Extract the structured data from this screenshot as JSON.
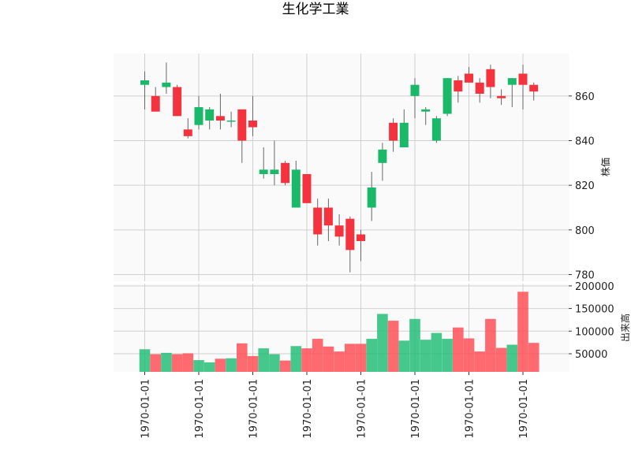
{
  "chart_data": {
    "title": "生化学工業",
    "type": "candlestick",
    "colors": {
      "up": "#1ab96a",
      "down": "#f5333f",
      "wick": "#666666",
      "vol_up": "#1fbd74",
      "vol_down": "#ff4a50",
      "panel_bg": "#fafafa",
      "grid": "#d0d0d0"
    },
    "price_panel": {
      "ylabel": "株価",
      "ylim": [
        777,
        879
      ],
      "yticks": [
        780,
        800,
        820,
        840,
        860
      ]
    },
    "volume_panel": {
      "ylabel": "出来高",
      "ylim": [
        10000,
        205000
      ],
      "yticks": [
        50000,
        100000,
        150000,
        200000
      ],
      "ytick_labels": [
        "50000",
        "100000",
        "150000",
        "200000"
      ]
    },
    "x_tick_labels": [
      "1970-01-01",
      "1970-01-01",
      "1970-01-01",
      "1970-01-01",
      "1970-01-01",
      "1970-01-01",
      "1970-01-01",
      "1970-01-01"
    ],
    "x_tick_indices": [
      0,
      5,
      10,
      15,
      20,
      25,
      30,
      35
    ],
    "candles": [
      {
        "o": 865,
        "h": 871,
        "l": 854,
        "c": 867,
        "v": 60000
      },
      {
        "o": 860,
        "h": 864,
        "l": 853,
        "c": 853,
        "v": 49000
      },
      {
        "o": 864,
        "h": 875,
        "l": 861,
        "c": 866,
        "v": 52000
      },
      {
        "o": 864,
        "h": 865,
        "l": 851,
        "c": 851,
        "v": 49000
      },
      {
        "o": 845,
        "h": 850,
        "l": 841,
        "c": 842,
        "v": 51000
      },
      {
        "o": 847,
        "h": 860,
        "l": 845,
        "c": 855,
        "v": 36000
      },
      {
        "o": 849,
        "h": 855,
        "l": 845,
        "c": 854,
        "v": 31000
      },
      {
        "o": 851,
        "h": 861,
        "l": 845,
        "c": 849,
        "v": 39000
      },
      {
        "o": 849,
        "h": 853,
        "l": 846,
        "c": 849,
        "v": 40000
      },
      {
        "o": 854,
        "h": 854,
        "l": 830,
        "c": 840,
        "v": 73000
      },
      {
        "o": 849,
        "h": 860,
        "l": 842,
        "c": 846,
        "v": 45000
      },
      {
        "o": 825,
        "h": 837,
        "l": 823,
        "c": 827,
        "v": 62000
      },
      {
        "o": 825,
        "h": 840,
        "l": 820,
        "c": 827,
        "v": 49000
      },
      {
        "o": 830,
        "h": 831,
        "l": 820,
        "c": 821,
        "v": 35000
      },
      {
        "o": 810,
        "h": 831,
        "l": 810,
        "c": 827,
        "v": 67000
      },
      {
        "o": 825,
        "h": 825,
        "l": 812,
        "c": 812,
        "v": 62000
      },
      {
        "o": 810,
        "h": 814,
        "l": 793,
        "c": 798,
        "v": 83000
      },
      {
        "o": 810,
        "h": 814,
        "l": 795,
        "c": 802,
        "v": 66000
      },
      {
        "o": 802,
        "h": 807,
        "l": 793,
        "c": 797,
        "v": 55000
      },
      {
        "o": 805,
        "h": 806,
        "l": 781,
        "c": 791,
        "v": 72000
      },
      {
        "o": 798,
        "h": 800,
        "l": 786,
        "c": 795,
        "v": 72000
      },
      {
        "o": 810,
        "h": 826,
        "l": 804,
        "c": 819,
        "v": 83000
      },
      {
        "o": 830,
        "h": 839,
        "l": 822,
        "c": 836,
        "v": 138000
      },
      {
        "o": 848,
        "h": 850,
        "l": 835,
        "c": 840,
        "v": 123000
      },
      {
        "o": 837,
        "h": 854,
        "l": 837,
        "c": 848,
        "v": 79000
      },
      {
        "o": 860,
        "h": 868,
        "l": 850,
        "c": 865,
        "v": 127000
      },
      {
        "o": 853,
        "h": 855,
        "l": 847,
        "c": 854,
        "v": 81000
      },
      {
        "o": 840,
        "h": 851,
        "l": 839,
        "c": 850,
        "v": 96000
      },
      {
        "o": 852,
        "h": 868,
        "l": 851,
        "c": 868,
        "v": 83000
      },
      {
        "o": 867,
        "h": 869,
        "l": 857,
        "c": 862,
        "v": 108000
      },
      {
        "o": 870,
        "h": 873,
        "l": 866,
        "c": 866,
        "v": 84000
      },
      {
        "o": 866,
        "h": 868,
        "l": 857,
        "c": 861,
        "v": 55000
      },
      {
        "o": 872,
        "h": 874,
        "l": 859,
        "c": 864,
        "v": 127000
      },
      {
        "o": 860,
        "h": 863,
        "l": 856,
        "c": 859,
        "v": 63000
      },
      {
        "o": 865,
        "h": 868,
        "l": 855,
        "c": 868,
        "v": 70000
      },
      {
        "o": 870,
        "h": 874,
        "l": 854,
        "c": 865,
        "v": 187000
      },
      {
        "o": 865,
        "h": 866,
        "l": 858,
        "c": 862,
        "v": 74000
      }
    ]
  }
}
